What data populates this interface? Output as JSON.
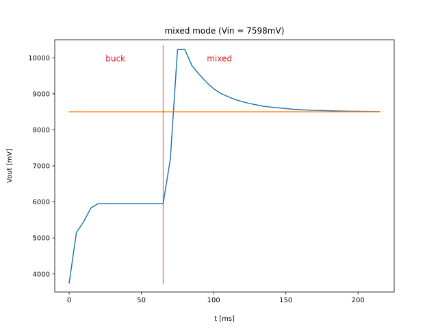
{
  "chart_data": {
    "type": "line",
    "title": "mixed mode (Vin = 7598mV)",
    "xlabel": "t [ms]",
    "ylabel": "Vout [mV]",
    "xlim": [
      -10,
      225
    ],
    "ylim": [
      3500,
      10500
    ],
    "xticks": [
      0,
      50,
      100,
      150,
      200
    ],
    "yticks": [
      4000,
      5000,
      6000,
      7000,
      8000,
      9000,
      10000
    ],
    "grid": false,
    "series": [
      {
        "color": "#1f77b4",
        "x": [
          0,
          5,
          10,
          15,
          20,
          25,
          30,
          35,
          40,
          45,
          50,
          55,
          60,
          65,
          70,
          75,
          80,
          85,
          90,
          95,
          100,
          105,
          110,
          115,
          120,
          125,
          130,
          135,
          140,
          145,
          150,
          155,
          160,
          165,
          170,
          175,
          180,
          185,
          190,
          195,
          200,
          205,
          210,
          215
        ],
        "y": [
          3750,
          5150,
          5450,
          5830,
          5950,
          5950,
          5950,
          5950,
          5950,
          5950,
          5950,
          5950,
          5950,
          5950,
          7180,
          10230,
          10230,
          9780,
          9540,
          9320,
          9140,
          9010,
          8920,
          8840,
          8780,
          8730,
          8690,
          8650,
          8630,
          8610,
          8590,
          8570,
          8560,
          8550,
          8540,
          8535,
          8530,
          8525,
          8520,
          8515,
          8512,
          8510,
          8508,
          8505
        ]
      },
      {
        "color": "#ff7f0e",
        "x": [
          0,
          215
        ],
        "y": [
          8500,
          8500
        ]
      }
    ],
    "vline": {
      "x": 65,
      "color": "#d62728",
      "ymin": 3720,
      "ymax": 10350
    },
    "annotations": [
      {
        "text": "buck",
        "x": 32,
        "y": 10000,
        "color": "#e41a1c"
      },
      {
        "text": "mixed",
        "x": 104,
        "y": 10000,
        "color": "#e41a1c"
      }
    ]
  }
}
